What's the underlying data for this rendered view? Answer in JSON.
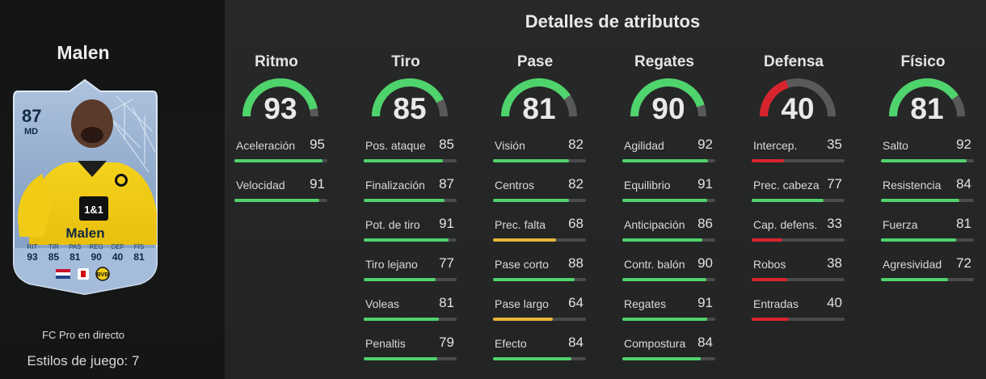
{
  "player": {
    "name": "Malen",
    "rating": "87",
    "position": "MD",
    "version": "FC Pro en directo",
    "playstyles": "Estilos de juego: 7",
    "card_stats": [
      {
        "label": "RIT",
        "value": "93"
      },
      {
        "label": "TIR",
        "value": "85"
      },
      {
        "label": "PAS",
        "value": "81"
      },
      {
        "label": "REG",
        "value": "90"
      },
      {
        "label": "DEF",
        "value": "40"
      },
      {
        "label": "FÍS",
        "value": "81"
      }
    ]
  },
  "colors": {
    "high": "#4fd36c",
    "mid": "#e9b53a",
    "low": "#d8242e",
    "track": "#4a4b4b",
    "gauge_track": "#58595a"
  },
  "title": "Detalles de atributos",
  "groups": [
    {
      "name": "Ritmo",
      "value": 93,
      "attributes": [
        {
          "label": "Aceleración",
          "value": 95
        },
        {
          "label": "Velocidad",
          "value": 91
        }
      ]
    },
    {
      "name": "Tiro",
      "value": 85,
      "attributes": [
        {
          "label": "Pos. ataque",
          "value": 85
        },
        {
          "label": "Finalización",
          "value": 87
        },
        {
          "label": "Pot. de tiro",
          "value": 91
        },
        {
          "label": "Tiro lejano",
          "value": 77
        },
        {
          "label": "Voleas",
          "value": 81
        },
        {
          "label": "Penaltis",
          "value": 79
        }
      ]
    },
    {
      "name": "Pase",
      "value": 81,
      "attributes": [
        {
          "label": "Visión",
          "value": 82
        },
        {
          "label": "Centros",
          "value": 82
        },
        {
          "label": "Prec. falta",
          "value": 68
        },
        {
          "label": "Pase corto",
          "value": 88
        },
        {
          "label": "Pase largo",
          "value": 64
        },
        {
          "label": "Efecto",
          "value": 84
        }
      ]
    },
    {
      "name": "Regates",
      "value": 90,
      "attributes": [
        {
          "label": "Agilidad",
          "value": 92
        },
        {
          "label": "Equilibrio",
          "value": 91
        },
        {
          "label": "Anticipación",
          "value": 86
        },
        {
          "label": "Contr. balón",
          "value": 90
        },
        {
          "label": "Regates",
          "value": 91
        },
        {
          "label": "Compostura",
          "value": 84
        }
      ]
    },
    {
      "name": "Defensa",
      "value": 40,
      "attributes": [
        {
          "label": "Intercep.",
          "value": 35
        },
        {
          "label": "Prec. cabeza",
          "value": 77
        },
        {
          "label": "Cap. defens.",
          "value": 33
        },
        {
          "label": "Robos",
          "value": 38
        },
        {
          "label": "Entradas",
          "value": 40
        }
      ]
    },
    {
      "name": "Físico",
      "value": 81,
      "attributes": [
        {
          "label": "Salto",
          "value": 92
        },
        {
          "label": "Resistencia",
          "value": 84
        },
        {
          "label": "Fuerza",
          "value": 81
        },
        {
          "label": "Agresividad",
          "value": 72
        }
      ]
    }
  ]
}
